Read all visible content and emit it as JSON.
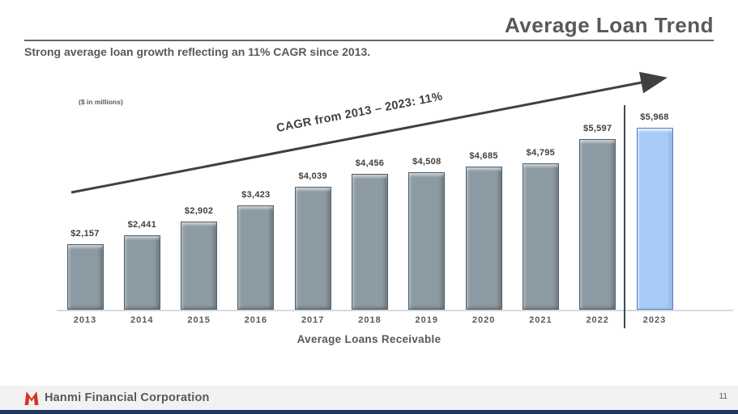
{
  "slide": {
    "title": "Average Loan Trend",
    "subtitle": "Strong average loan growth reflecting an 11% CAGR since 2013.",
    "units_note": "($ in millions)",
    "page_number": "11"
  },
  "chart_data": {
    "type": "bar",
    "title": "Average Loan Trend",
    "xlabel": "Average Loans Receivable",
    "ylabel": "Average loans ($ in millions)",
    "units": "$ in millions",
    "categories": [
      "2013",
      "2014",
      "2015",
      "2016",
      "2017",
      "2018",
      "2019",
      "2020",
      "2021",
      "2022",
      "2023"
    ],
    "values": [
      2157,
      2441,
      2902,
      3423,
      4039,
      4456,
      4508,
      4685,
      4795,
      5597,
      5968
    ],
    "value_labels": [
      "$2,157",
      "$2,441",
      "$2,902",
      "$3,423",
      "$4,039",
      "$4,456",
      "$4,508",
      "$4,685",
      "$4,795",
      "$5,597",
      "$5,968"
    ],
    "annotation": "CAGR from 2013 – 2023: 11%",
    "highlight_category": "2023",
    "bar_color": "#8c9aa4",
    "highlight_color": "#a7caf6",
    "arrow_color": "#404040",
    "ylim": [
      0,
      6300
    ],
    "grid": false,
    "legend": "none"
  },
  "footer": {
    "company": "Hanmi Financial Corporation",
    "logo": "hanmi-logo",
    "logo_color": "#d93026",
    "band_color": "#f2f2f2",
    "bottom_bar_color": "#203864"
  }
}
